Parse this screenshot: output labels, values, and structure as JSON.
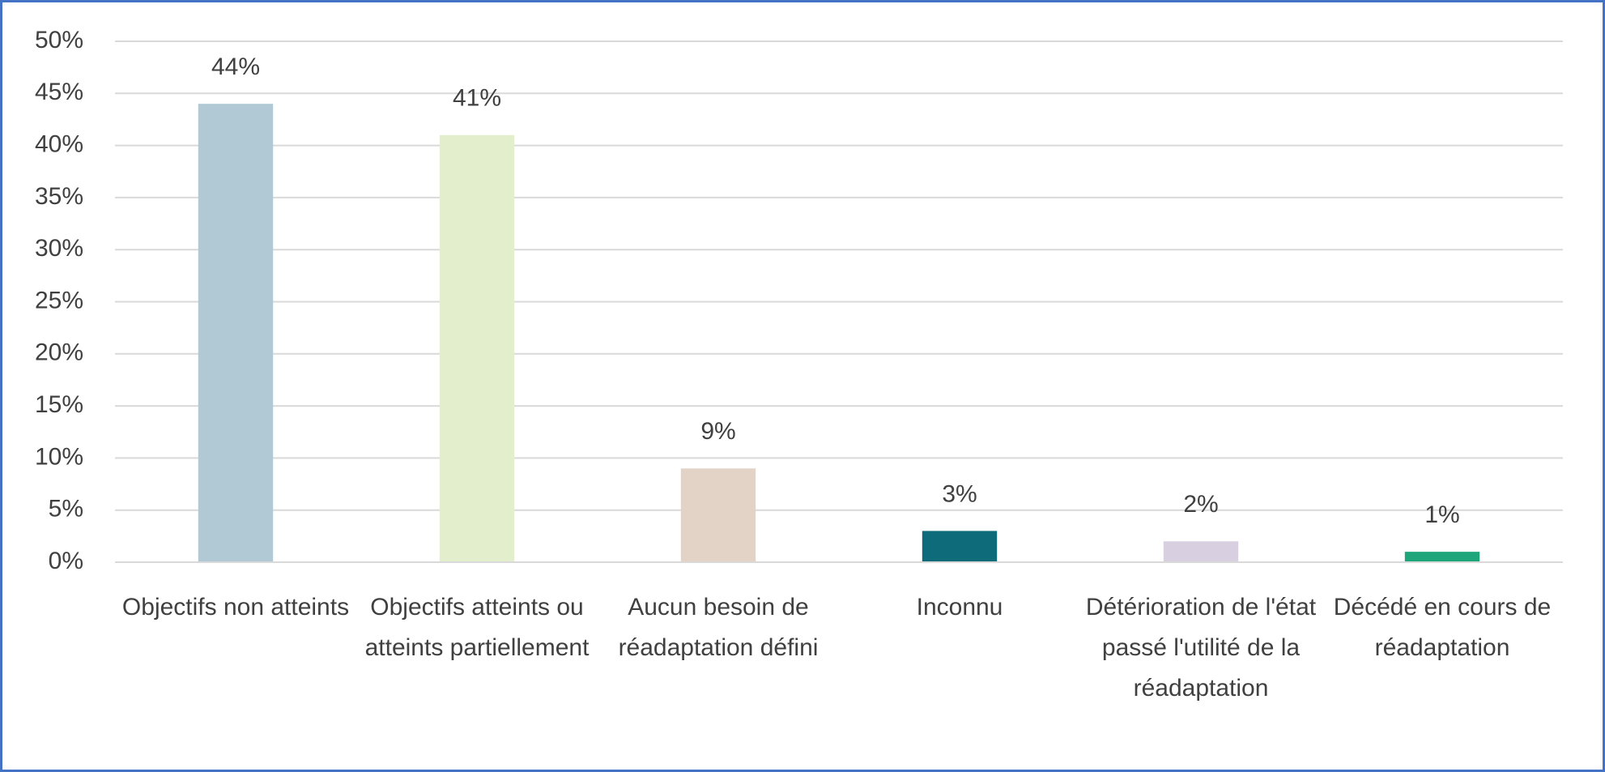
{
  "chart_data": {
    "type": "bar",
    "categories": [
      "Objectifs non atteints",
      "Objectifs atteints ou atteints partiellement",
      "Aucun besoin de réadaptation défini",
      "Inconnu",
      "Détérioration de l'état passé l'utilité de la réadaptation",
      "Décédé en cours de réadaptation"
    ],
    "values": [
      44,
      41,
      9,
      3,
      2,
      1
    ],
    "value_labels": [
      "44%",
      "41%",
      "9%",
      "3%",
      "2%",
      "1%"
    ],
    "colors": [
      "#b0c9d4",
      "#e3efcc",
      "#e3d3c7",
      "#0e6b7a",
      "#d8cfe0",
      "#1ea579"
    ],
    "ylim": [
      0,
      50
    ],
    "yticks": [
      {
        "value": 0,
        "label": "0%"
      },
      {
        "value": 5,
        "label": "5%"
      },
      {
        "value": 10,
        "label": "10%"
      },
      {
        "value": 15,
        "label": "15%"
      },
      {
        "value": 20,
        "label": "20%"
      },
      {
        "value": 25,
        "label": "25%"
      },
      {
        "value": 30,
        "label": "30%"
      },
      {
        "value": 35,
        "label": "35%"
      },
      {
        "value": 40,
        "label": "40%"
      },
      {
        "value": 45,
        "label": "45%"
      },
      {
        "value": 50,
        "label": "50%"
      }
    ],
    "grid": true
  }
}
